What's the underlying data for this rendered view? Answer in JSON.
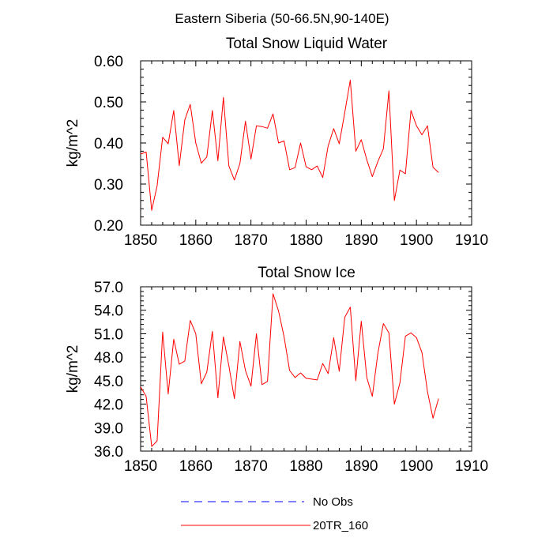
{
  "page_title": "Eastern Siberia (50-66.5N,90-140E)",
  "colors": {
    "series_20tr": "#ff0000",
    "series_noobs": "#0000ff",
    "axis": "#000000"
  },
  "legend": [
    {
      "name": "No Obs",
      "color": "#0000ff",
      "style": "dashed"
    },
    {
      "name": "20TR_160",
      "color": "#ff0000",
      "style": "solid"
    }
  ],
  "chart_data": [
    {
      "type": "line",
      "title": "Total Snow Liquid Water",
      "xlabel": "",
      "ylabel": "kg/m^2",
      "xlim": [
        1850,
        1910
      ],
      "ylim": [
        0.2,
        0.6
      ],
      "xticks": [
        1850,
        1860,
        1870,
        1880,
        1890,
        1900,
        1910
      ],
      "xtick_labels": [
        "1850",
        "1860",
        "1870",
        "1880",
        "1890",
        "1900",
        "1910"
      ],
      "yticks": [
        0.2,
        0.3,
        0.4,
        0.5,
        0.6
      ],
      "ytick_labels": [
        "0.20",
        "0.30",
        "0.40",
        "0.50",
        "0.60"
      ],
      "grid": false,
      "series": [
        {
          "name": "20TR_160",
          "color": "#ff0000",
          "x": [
            1850,
            1851,
            1852,
            1853,
            1854,
            1855,
            1856,
            1857,
            1858,
            1859,
            1860,
            1861,
            1862,
            1863,
            1864,
            1865,
            1866,
            1867,
            1868,
            1869,
            1870,
            1871,
            1872,
            1873,
            1874,
            1875,
            1876,
            1877,
            1878,
            1879,
            1880,
            1881,
            1882,
            1883,
            1884,
            1885,
            1886,
            1887,
            1888,
            1889,
            1890,
            1891,
            1892,
            1893,
            1894,
            1895,
            1896,
            1897,
            1898,
            1899,
            1900,
            1901,
            1902,
            1903,
            1904
          ],
          "values": [
            0.373,
            0.378,
            0.236,
            0.296,
            0.414,
            0.398,
            0.479,
            0.345,
            0.456,
            0.494,
            0.4,
            0.351,
            0.366,
            0.479,
            0.357,
            0.511,
            0.344,
            0.31,
            0.35,
            0.453,
            0.361,
            0.442,
            0.44,
            0.436,
            0.471,
            0.4,
            0.405,
            0.335,
            0.34,
            0.4,
            0.342,
            0.335,
            0.344,
            0.316,
            0.393,
            0.435,
            0.398,
            0.474,
            0.553,
            0.38,
            0.408,
            0.359,
            0.318,
            0.355,
            0.386,
            0.527,
            0.26,
            0.334,
            0.325,
            0.479,
            0.442,
            0.42,
            0.442,
            0.341,
            0.328
          ]
        }
      ]
    },
    {
      "type": "line",
      "title": "Total Snow Ice",
      "xlabel": "",
      "ylabel": "kg/m^2",
      "xlim": [
        1850,
        1910
      ],
      "ylim": [
        36.0,
        57.0
      ],
      "xticks": [
        1850,
        1860,
        1870,
        1880,
        1890,
        1900,
        1910
      ],
      "xtick_labels": [
        "1850",
        "1860",
        "1870",
        "1880",
        "1890",
        "1900",
        "1910"
      ],
      "yticks": [
        36.0,
        39.0,
        42.0,
        45.0,
        48.0,
        51.0,
        54.0,
        57.0
      ],
      "ytick_labels": [
        "36.0",
        "39.0",
        "42.0",
        "45.0",
        "48.0",
        "51.0",
        "54.0",
        "57.0"
      ],
      "grid": false,
      "series": [
        {
          "name": "20TR_160",
          "color": "#ff0000",
          "x": [
            1850,
            1851,
            1852,
            1853,
            1854,
            1855,
            1856,
            1857,
            1858,
            1859,
            1860,
            1861,
            1862,
            1863,
            1864,
            1865,
            1866,
            1867,
            1868,
            1869,
            1870,
            1871,
            1872,
            1873,
            1874,
            1875,
            1876,
            1877,
            1878,
            1879,
            1880,
            1881,
            1882,
            1883,
            1884,
            1885,
            1886,
            1887,
            1888,
            1889,
            1890,
            1891,
            1892,
            1893,
            1894,
            1895,
            1896,
            1897,
            1898,
            1899,
            1900,
            1901,
            1902,
            1903,
            1904
          ],
          "values": [
            44.2,
            43.0,
            36.6,
            37.3,
            51.2,
            43.3,
            50.3,
            47.1,
            47.5,
            52.7,
            51.0,
            44.6,
            46.1,
            51.3,
            42.8,
            50.6,
            46.9,
            42.7,
            50.0,
            46.3,
            44.3,
            51.0,
            44.5,
            44.9,
            56.1,
            53.9,
            50.6,
            46.3,
            45.4,
            46.0,
            45.3,
            45.2,
            45.1,
            47.2,
            45.9,
            50.5,
            46.2,
            53.1,
            54.4,
            45.0,
            52.6,
            45.4,
            43.0,
            48.5,
            52.3,
            51.1,
            42.0,
            44.7,
            50.7,
            51.1,
            50.5,
            48.6,
            43.6,
            40.2,
            42.7
          ]
        }
      ]
    }
  ]
}
